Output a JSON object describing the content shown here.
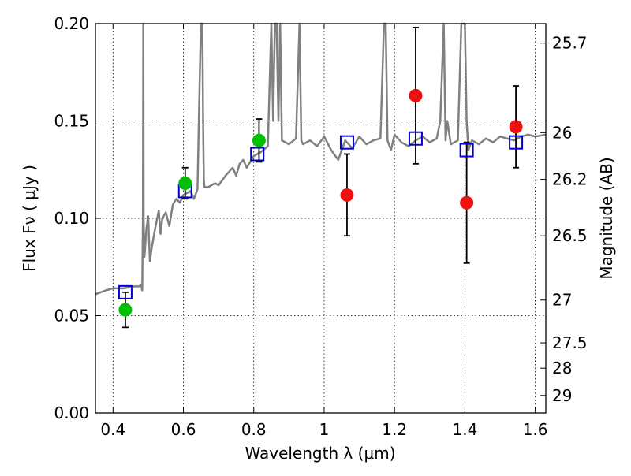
{
  "chart_data": {
    "type": "scatter",
    "title": "",
    "xlabel": "Wavelength  λ (μm)",
    "ylabel": "Flux  Fν  ( μJy )",
    "y2label": "Magnitude (AB)",
    "xlim": [
      0.35,
      1.63
    ],
    "ylim": [
      0.0,
      0.2
    ],
    "grid": true,
    "x_ticks": [
      {
        "value": 0.4,
        "label": "0.4"
      },
      {
        "value": 0.6,
        "label": "0.6"
      },
      {
        "value": 0.8,
        "label": "0.8"
      },
      {
        "value": 1.0,
        "label": "1"
      },
      {
        "value": 1.2,
        "label": "1.2"
      },
      {
        "value": 1.4,
        "label": "1.4"
      },
      {
        "value": 1.6,
        "label": "1.6"
      }
    ],
    "y_ticks": [
      {
        "value": 0.0,
        "label": "0.00"
      },
      {
        "value": 0.05,
        "label": "0.05"
      },
      {
        "value": 0.1,
        "label": "0.10"
      },
      {
        "value": 0.15,
        "label": "0.15"
      },
      {
        "value": 0.2,
        "label": "0.20"
      }
    ],
    "y2_ticks": [
      {
        "label": "25.7",
        "flux": 0.19
      },
      {
        "label": "26",
        "flux": 0.144
      },
      {
        "label": "26.2",
        "flux": 0.12
      },
      {
        "label": "26.5",
        "flux": 0.091
      },
      {
        "label": "27",
        "flux": 0.058
      },
      {
        "label": "27.5",
        "flux": 0.036
      },
      {
        "label": "28",
        "flux": 0.023
      },
      {
        "label": "29",
        "flux": 0.009
      }
    ],
    "series": [
      {
        "role": "model_spectrum",
        "color": "#808080",
        "x": [
          0.35,
          0.38,
          0.4,
          0.43,
          0.46,
          0.475,
          0.48,
          0.483,
          0.485,
          0.486,
          0.487,
          0.489,
          0.49,
          0.495,
          0.5,
          0.502,
          0.505,
          0.51,
          0.52,
          0.53,
          0.535,
          0.54,
          0.55,
          0.56,
          0.57,
          0.58,
          0.59,
          0.6,
          0.62,
          0.63,
          0.64,
          0.645,
          0.65,
          0.652,
          0.654,
          0.656,
          0.658,
          0.66,
          0.67,
          0.69,
          0.7,
          0.72,
          0.74,
          0.75,
          0.76,
          0.77,
          0.78,
          0.8,
          0.82,
          0.84,
          0.85,
          0.855,
          0.86,
          0.865,
          0.87,
          0.875,
          0.88,
          0.9,
          0.92,
          0.93,
          0.935,
          0.94,
          0.96,
          0.98,
          1.0,
          1.02,
          1.04,
          1.06,
          1.08,
          1.1,
          1.12,
          1.14,
          1.16,
          1.17,
          1.175,
          1.18,
          1.19,
          1.2,
          1.22,
          1.24,
          1.26,
          1.28,
          1.3,
          1.32,
          1.33,
          1.34,
          1.345,
          1.35,
          1.36,
          1.38,
          1.39,
          1.4,
          1.405,
          1.41,
          1.42,
          1.44,
          1.46,
          1.48,
          1.5,
          1.52,
          1.54,
          1.56,
          1.58,
          1.6,
          1.63
        ],
        "y": [
          0.061,
          0.063,
          0.064,
          0.064,
          0.065,
          0.065,
          0.066,
          0.063,
          0.1,
          0.2,
          0.1,
          0.08,
          0.082,
          0.095,
          0.101,
          0.09,
          0.078,
          0.085,
          0.095,
          0.104,
          0.092,
          0.1,
          0.103,
          0.096,
          0.107,
          0.11,
          0.108,
          0.112,
          0.114,
          0.11,
          0.115,
          0.16,
          0.2,
          0.2,
          0.2,
          0.15,
          0.12,
          0.116,
          0.116,
          0.118,
          0.117,
          0.122,
          0.126,
          0.122,
          0.128,
          0.13,
          0.126,
          0.132,
          0.134,
          0.137,
          0.2,
          0.15,
          0.2,
          0.2,
          0.15,
          0.2,
          0.14,
          0.138,
          0.141,
          0.2,
          0.14,
          0.138,
          0.14,
          0.137,
          0.142,
          0.135,
          0.13,
          0.14,
          0.136,
          0.142,
          0.138,
          0.14,
          0.141,
          0.2,
          0.2,
          0.14,
          0.135,
          0.143,
          0.139,
          0.137,
          0.14,
          0.142,
          0.139,
          0.141,
          0.15,
          0.2,
          0.14,
          0.15,
          0.138,
          0.14,
          0.2,
          0.2,
          0.15,
          0.135,
          0.14,
          0.138,
          0.141,
          0.139,
          0.142,
          0.141,
          0.14,
          0.142,
          0.143,
          0.142,
          0.143
        ]
      },
      {
        "role": "observed_optical",
        "color": "#00c000",
        "marker": "circle",
        "x": [
          0.435,
          0.605,
          0.815
        ],
        "y": [
          0.053,
          0.118,
          0.14
        ],
        "yerr": [
          0.009,
          0.008,
          0.011
        ]
      },
      {
        "role": "observed_infrared",
        "color": "#ee1111",
        "marker": "circle",
        "x": [
          1.065,
          1.26,
          1.405,
          1.545
        ],
        "y": [
          0.112,
          0.163,
          0.108,
          0.147
        ],
        "yerr": [
          0.021,
          0.035,
          0.031,
          0.021
        ]
      },
      {
        "role": "model_photometry",
        "color": "#0000cc",
        "marker": "square",
        "x": [
          0.435,
          0.605,
          0.81,
          1.065,
          1.26,
          1.405,
          1.545
        ],
        "y": [
          0.062,
          0.114,
          0.133,
          0.139,
          0.141,
          0.135,
          0.139
        ]
      }
    ]
  }
}
